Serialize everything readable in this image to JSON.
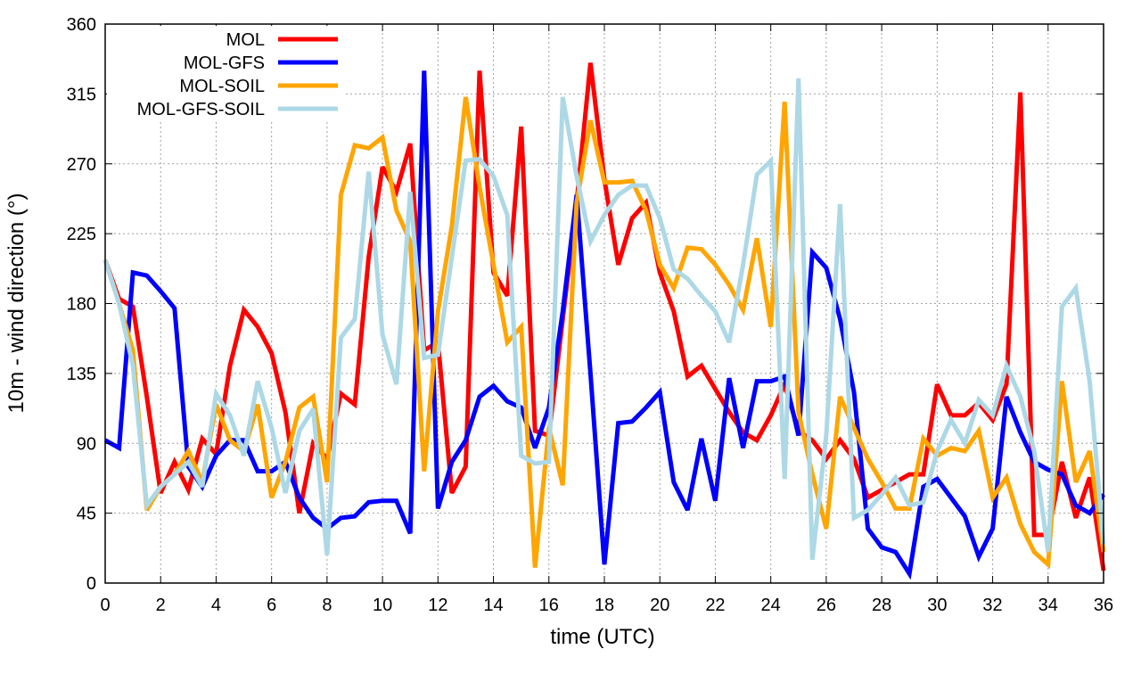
{
  "chart_data": {
    "type": "line",
    "title": "",
    "xlabel": "time (UTC)",
    "ylabel": "10m - wind direction (°)",
    "xlim": [
      0,
      36
    ],
    "ylim": [
      0,
      360
    ],
    "xticks": [
      0,
      2,
      4,
      6,
      8,
      10,
      12,
      14,
      16,
      18,
      20,
      22,
      24,
      26,
      28,
      30,
      32,
      34,
      36
    ],
    "yticks": [
      0,
      45,
      90,
      135,
      180,
      225,
      270,
      315,
      360
    ],
    "grid": true,
    "legend_position": "top-left",
    "x_step": 0.5,
    "series": [
      {
        "name": "MOL",
        "color": "#ff0000",
        "values": [
          208,
          183,
          178,
          120,
          58,
          78,
          60,
          93,
          83,
          140,
          176,
          165,
          148,
          110,
          45,
          90,
          80,
          122,
          115,
          210,
          268,
          252,
          283,
          150,
          155,
          58,
          75,
          330,
          200,
          185,
          294,
          98,
          95,
          170,
          245,
          335,
          260,
          205,
          235,
          245,
          200,
          175,
          133,
          140,
          125,
          110,
          97,
          92,
          108,
          128,
          98,
          92,
          80,
          92,
          80,
          55,
          60,
          65,
          70,
          70,
          128,
          108,
          108,
          116,
          105,
          128,
          316,
          31,
          31,
          78,
          42,
          68,
          8
        ]
      },
      {
        "name": "MOL-GFS",
        "color": "#0000ff",
        "values": [
          92,
          87,
          200,
          198,
          188,
          177,
          75,
          62,
          82,
          92,
          92,
          72,
          72,
          78,
          55,
          42,
          35,
          42,
          43,
          52,
          53,
          53,
          32,
          330,
          48,
          78,
          92,
          120,
          127,
          117,
          113,
          87,
          113,
          175,
          250,
          135,
          12,
          103,
          104,
          113,
          123,
          65,
          47,
          93,
          53,
          132,
          87,
          130,
          130,
          133,
          95,
          213,
          203,
          170,
          123,
          35,
          23,
          20,
          6,
          62,
          67,
          55,
          43,
          17,
          35,
          120,
          97,
          78,
          73,
          70,
          50,
          45,
          57
        ]
      },
      {
        "name": "MOL-SOIL",
        "color": "#ffa500",
        "values": [
          208,
          180,
          150,
          47,
          62,
          70,
          85,
          65,
          115,
          92,
          85,
          115,
          55,
          78,
          113,
          120,
          65,
          250,
          282,
          280,
          287,
          240,
          220,
          72,
          175,
          230,
          313,
          255,
          205,
          155,
          165,
          10,
          100,
          63,
          245,
          298,
          258,
          258,
          259,
          240,
          205,
          190,
          216,
          215,
          205,
          192,
          176,
          222,
          165,
          310,
          110,
          70,
          35,
          120,
          100,
          80,
          65,
          48,
          48,
          93,
          82,
          87,
          85,
          98,
          55,
          68,
          38,
          20,
          12,
          130,
          65,
          85,
          20
        ]
      },
      {
        "name": "MOL-GFS-SOIL",
        "color": "#add8e6",
        "values": [
          208,
          180,
          140,
          50,
          62,
          70,
          78,
          62,
          122,
          108,
          82,
          130,
          100,
          58,
          98,
          112,
          18,
          158,
          170,
          265,
          160,
          128,
          252,
          145,
          147,
          210,
          272,
          273,
          262,
          237,
          82,
          77,
          78,
          313,
          262,
          220,
          237,
          250,
          256,
          256,
          235,
          202,
          196,
          185,
          175,
          155,
          205,
          263,
          272,
          67,
          325,
          15,
          95,
          244,
          42,
          47,
          57,
          68,
          50,
          52,
          85,
          105,
          90,
          118,
          108,
          140,
          120,
          85,
          20,
          178,
          190,
          130,
          25
        ]
      }
    ]
  }
}
